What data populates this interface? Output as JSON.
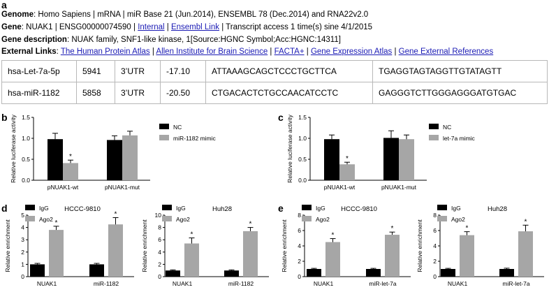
{
  "panel_labels": {
    "a": "a",
    "b": "b",
    "c": "c",
    "d": "d",
    "e": "e"
  },
  "info": {
    "genome_label": "Genome",
    "genome_value": ": Homo Sapiens | mRNA | miR Base 21 (Jun.2014), ENSEMBL 78 (Dec.2014) and RNA22v2.0",
    "gene_label": "Gene",
    "gene_value": ": NUAK1 | ENSG00000074590 | ",
    "gene_link1": "Internal",
    "gene_sep": " | ",
    "gene_link2": "Ensembl Link",
    "gene_tail": " | Transcript access 1 time(s) sine 4/1/2015",
    "desc_label": "Gene description",
    "desc_value": ": NUAK family, SNF1-like kinase, 1[Source:HGNC Symbol;Acc:HGNC:14311]",
    "ext_label": "External Links",
    "ext_colon": ": ",
    "ext_links": [
      "The Human Protein Atlas",
      "Allen Institute for Brain Science",
      "FACTA+",
      "Gene Expression Atlas",
      "Gene External References"
    ]
  },
  "table": {
    "rows": [
      [
        "hsa-Let-7a-5p",
        "5941",
        "3’UTR",
        "-17.10",
        "ATTAAAGCAGCTCCCTGCTTCA",
        "TGAGGTAGTAGGTTGTATAGTT"
      ],
      [
        "hsa-miR-1182",
        "5858",
        "3’UTR",
        "-20.50",
        "CTGACACTCTGCCAACATCCTC",
        "GAGGGTCTTGGGAGGGATGTGAC"
      ]
    ]
  },
  "chart_data": [
    {
      "id": "b",
      "type": "bar",
      "categories": [
        "pNUAK1-wt",
        "pNUAK1-mut"
      ],
      "series": [
        {
          "name": "NC",
          "color": "#000000",
          "values": [
            0.98,
            0.96
          ],
          "errors": [
            0.14,
            0.1
          ]
        },
        {
          "name": "miR-1182 mimic",
          "color": "#a6a6a6",
          "values": [
            0.41,
            1.07
          ],
          "errors": [
            0.07,
            0.1
          ]
        }
      ],
      "ylabel": "Relative luciferase activity",
      "ylim": [
        0,
        1.5
      ],
      "yticks": [
        "0.0",
        "0.5",
        "1.0",
        "1.5"
      ],
      "significance": [
        {
          "category": 0,
          "series": 1,
          "label": "*"
        }
      ]
    },
    {
      "id": "c",
      "type": "bar",
      "categories": [
        "pNUAK1-wt",
        "pNUAK1-mut"
      ],
      "series": [
        {
          "name": "NC",
          "color": "#000000",
          "values": [
            0.98,
            1.01
          ],
          "errors": [
            0.1,
            0.17
          ]
        },
        {
          "name": "let-7a mimic",
          "color": "#a6a6a6",
          "values": [
            0.38,
            0.98
          ],
          "errors": [
            0.05,
            0.1
          ]
        }
      ],
      "ylabel": "Relative luciferase activity",
      "ylim": [
        0,
        1.5
      ],
      "yticks": [
        "0.0",
        "0.5",
        "1.0",
        "1.5"
      ],
      "significance": [
        {
          "category": 0,
          "series": 1,
          "label": "*"
        }
      ]
    },
    {
      "id": "d1",
      "type": "bar",
      "title": "HCCC-9810",
      "categories": [
        "NUAK1",
        "miR-1182"
      ],
      "series": [
        {
          "name": "IgG",
          "color": "#000000",
          "values": [
            1.0,
            1.0
          ],
          "errors": [
            0.08,
            0.08
          ]
        },
        {
          "name": "Ago2",
          "color": "#a6a6a6",
          "values": [
            3.8,
            4.25
          ],
          "errors": [
            0.3,
            0.55
          ]
        }
      ],
      "ylabel": "Relative enrichment",
      "ylim": [
        0,
        5
      ],
      "yticks": [
        "0",
        "1",
        "2",
        "3",
        "4",
        "5"
      ],
      "significance": [
        {
          "category": 0,
          "series": 1,
          "label": "*"
        },
        {
          "category": 1,
          "series": 1,
          "label": "*"
        }
      ]
    },
    {
      "id": "d2",
      "type": "bar",
      "title": "Huh28",
      "categories": [
        "NUAK1",
        "miR-1182"
      ],
      "series": [
        {
          "name": "IgG",
          "color": "#000000",
          "values": [
            1.0,
            1.0
          ],
          "errors": [
            0.1,
            0.1
          ]
        },
        {
          "name": "Ago2",
          "color": "#a6a6a6",
          "values": [
            5.4,
            7.4
          ],
          "errors": [
            0.9,
            0.6
          ]
        }
      ],
      "ylabel": "Relative enrichment",
      "ylim": [
        0,
        10
      ],
      "yticks": [
        "0",
        "2",
        "4",
        "6",
        "8",
        "10"
      ],
      "significance": [
        {
          "category": 0,
          "series": 1,
          "label": "*"
        },
        {
          "category": 1,
          "series": 1,
          "label": "*"
        }
      ]
    },
    {
      "id": "e1",
      "type": "bar",
      "title": "HCCC-9810",
      "categories": [
        "NUAK1",
        "miR-let-7a"
      ],
      "series": [
        {
          "name": "IgG",
          "color": "#000000",
          "values": [
            1.0,
            1.0
          ],
          "errors": [
            0.08,
            0.08
          ]
        },
        {
          "name": "Ago2",
          "color": "#a6a6a6",
          "values": [
            4.5,
            5.45
          ],
          "errors": [
            0.45,
            0.35
          ]
        }
      ],
      "ylabel": "Relative enrichment",
      "ylim": [
        0,
        8
      ],
      "yticks": [
        "0",
        "2",
        "4",
        "6",
        "8"
      ],
      "significance": [
        {
          "category": 0,
          "series": 1,
          "label": "*"
        },
        {
          "category": 1,
          "series": 1,
          "label": "*"
        }
      ]
    },
    {
      "id": "e2",
      "type": "bar",
      "title": "Huh28",
      "categories": [
        "NUAK1",
        "miR-let-7a"
      ],
      "series": [
        {
          "name": "IgG",
          "color": "#000000",
          "values": [
            1.0,
            1.0
          ],
          "errors": [
            0.08,
            0.1
          ]
        },
        {
          "name": "Ago2",
          "color": "#a6a6a6",
          "values": [
            5.4,
            5.9
          ],
          "errors": [
            0.45,
            0.8
          ]
        }
      ],
      "ylabel": "Relative enrichment",
      "ylim": [
        0,
        8
      ],
      "yticks": [
        "0",
        "2",
        "4",
        "6",
        "8"
      ],
      "significance": [
        {
          "category": 0,
          "series": 1,
          "label": "*"
        },
        {
          "category": 1,
          "series": 1,
          "label": "*"
        }
      ]
    }
  ]
}
